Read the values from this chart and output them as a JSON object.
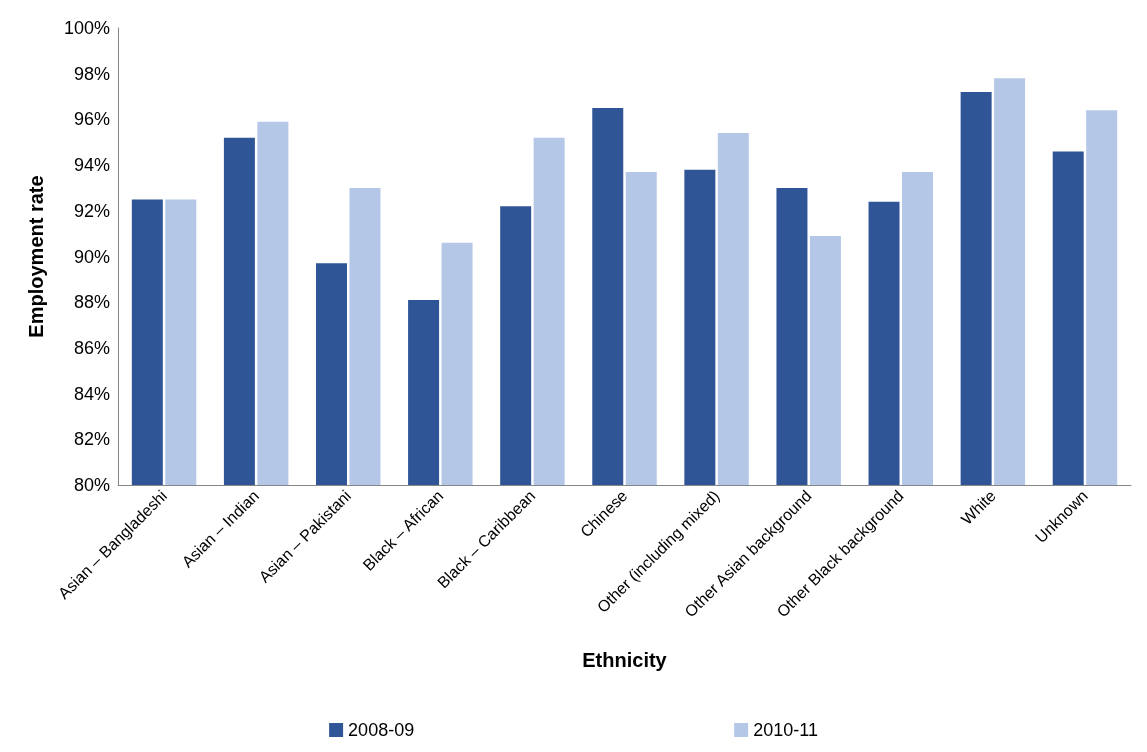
{
  "chart_data": {
    "type": "bar",
    "xlabel": "Ethnicity",
    "ylabel": "Employment rate",
    "categories": [
      "Asian – Bangladeshi",
      "Asian – Indian",
      "Asian – Pakistani",
      "Black – African",
      "Black – Caribbean",
      "Chinese",
      "Other (including mixed)",
      "Other Asian background",
      "Other Black background",
      "White",
      "Unknown"
    ],
    "series": [
      {
        "name": "2008-09",
        "color": "#2f5597",
        "values": [
          92.5,
          95.2,
          89.7,
          88.1,
          92.2,
          96.5,
          93.8,
          93.0,
          92.4,
          97.2,
          94.6
        ]
      },
      {
        "name": "2010-11",
        "color": "#b4c7e7",
        "values": [
          92.5,
          95.9,
          93.0,
          90.6,
          95.2,
          93.7,
          95.4,
          90.9,
          93.7,
          97.8,
          96.4
        ]
      }
    ],
    "ylim": [
      80,
      100
    ],
    "yticks": [
      {
        "value": 80,
        "label": "80%"
      },
      {
        "value": 82,
        "label": "82%"
      },
      {
        "value": 84,
        "label": "84%"
      },
      {
        "value": 86,
        "label": "86%"
      },
      {
        "value": 88,
        "label": "88%"
      },
      {
        "value": 90,
        "label": "90%"
      },
      {
        "value": 92,
        "label": "92%"
      },
      {
        "value": 94,
        "label": "94%"
      },
      {
        "value": 96,
        "label": "96%"
      },
      {
        "value": 98,
        "label": "98%"
      },
      {
        "value": 100,
        "label": "100%"
      }
    ],
    "grid": false,
    "legend": "bottom"
  }
}
